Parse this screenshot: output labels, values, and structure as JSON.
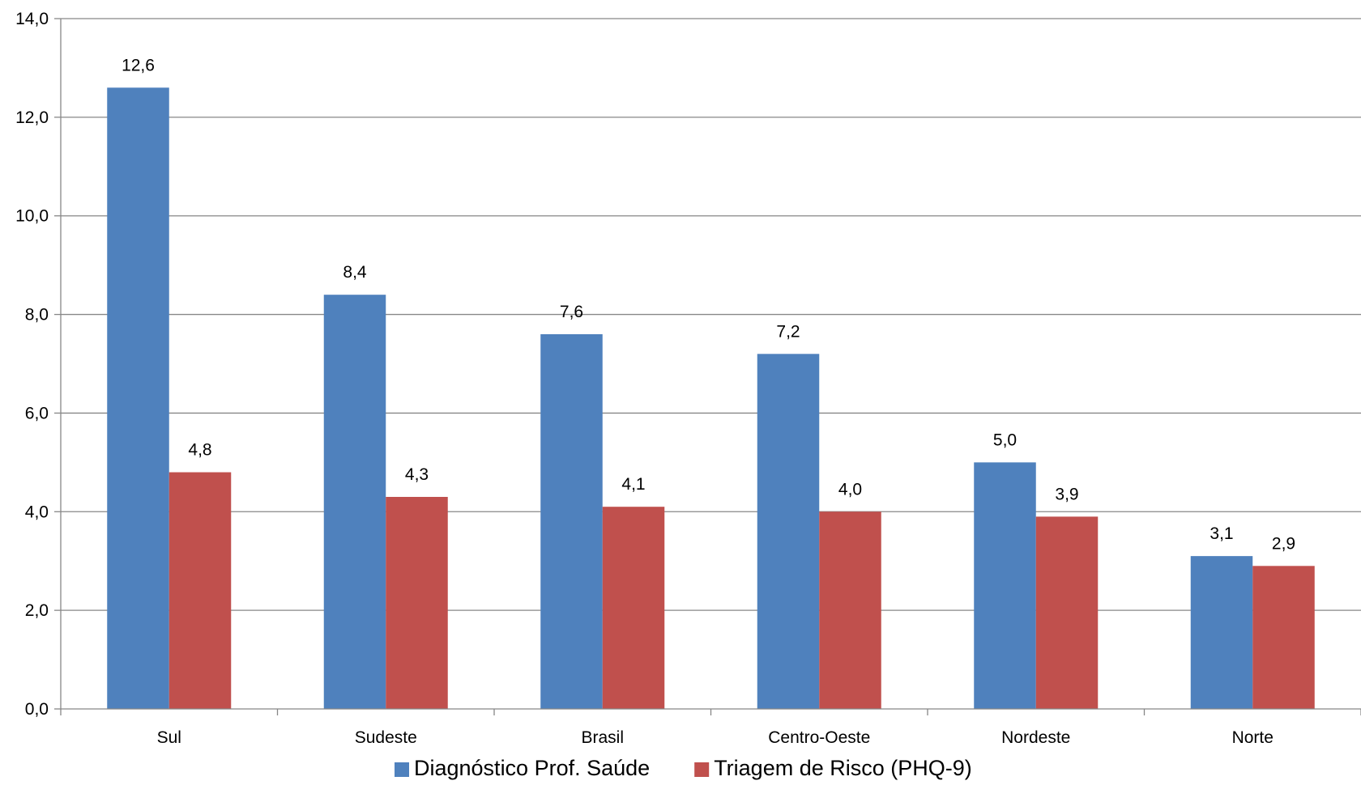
{
  "chart_data": {
    "type": "bar",
    "categories": [
      "Sul",
      "Sudeste",
      "Brasil",
      "Centro-Oeste",
      "Nordeste",
      "Norte"
    ],
    "series": [
      {
        "name": "Diagnóstico Prof. Saúde",
        "color": "#4F81BD",
        "values": [
          12.6,
          8.4,
          7.6,
          7.2,
          5.0,
          3.1
        ],
        "labels": [
          "12,6",
          "8,4",
          "7,6",
          "7,2",
          "5,0",
          "3,1"
        ]
      },
      {
        "name": "Triagem de Risco (PHQ-9)",
        "color": "#C0504D",
        "values": [
          4.8,
          4.3,
          4.1,
          4.0,
          3.9,
          2.9
        ],
        "labels": [
          "4,8",
          "4,3",
          "4,1",
          "4,0",
          "3,9",
          "2,9"
        ]
      }
    ],
    "ylim": [
      0,
      14
    ],
    "yticks": [
      0,
      2,
      4,
      6,
      8,
      10,
      12,
      14
    ],
    "ytick_labels": [
      "0,0",
      "2,0",
      "4,0",
      "6,0",
      "8,0",
      "10,0",
      "12,0",
      "14,0"
    ],
    "grid": true,
    "legend": "bottom",
    "title": "",
    "xlabel": "",
    "ylabel": ""
  }
}
